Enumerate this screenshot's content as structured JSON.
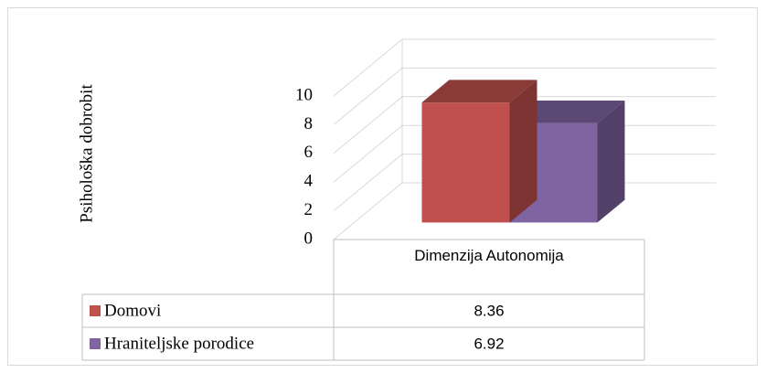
{
  "chart_data": {
    "type": "bar3d",
    "y_label": "Psihološka dobrobit",
    "categories": [
      "Dimenzija Autonomija"
    ],
    "series": [
      {
        "name": "Domovi",
        "color": "#c0504d",
        "values": [
          8.36
        ]
      },
      {
        "name": "Hraniteljske porodice",
        "color": "#8064a2",
        "values": [
          6.92
        ]
      }
    ],
    "ylim": [
      0,
      10
    ],
    "yticks": [
      0,
      2,
      4,
      6,
      8,
      10
    ],
    "grid": true,
    "data_table": true
  }
}
